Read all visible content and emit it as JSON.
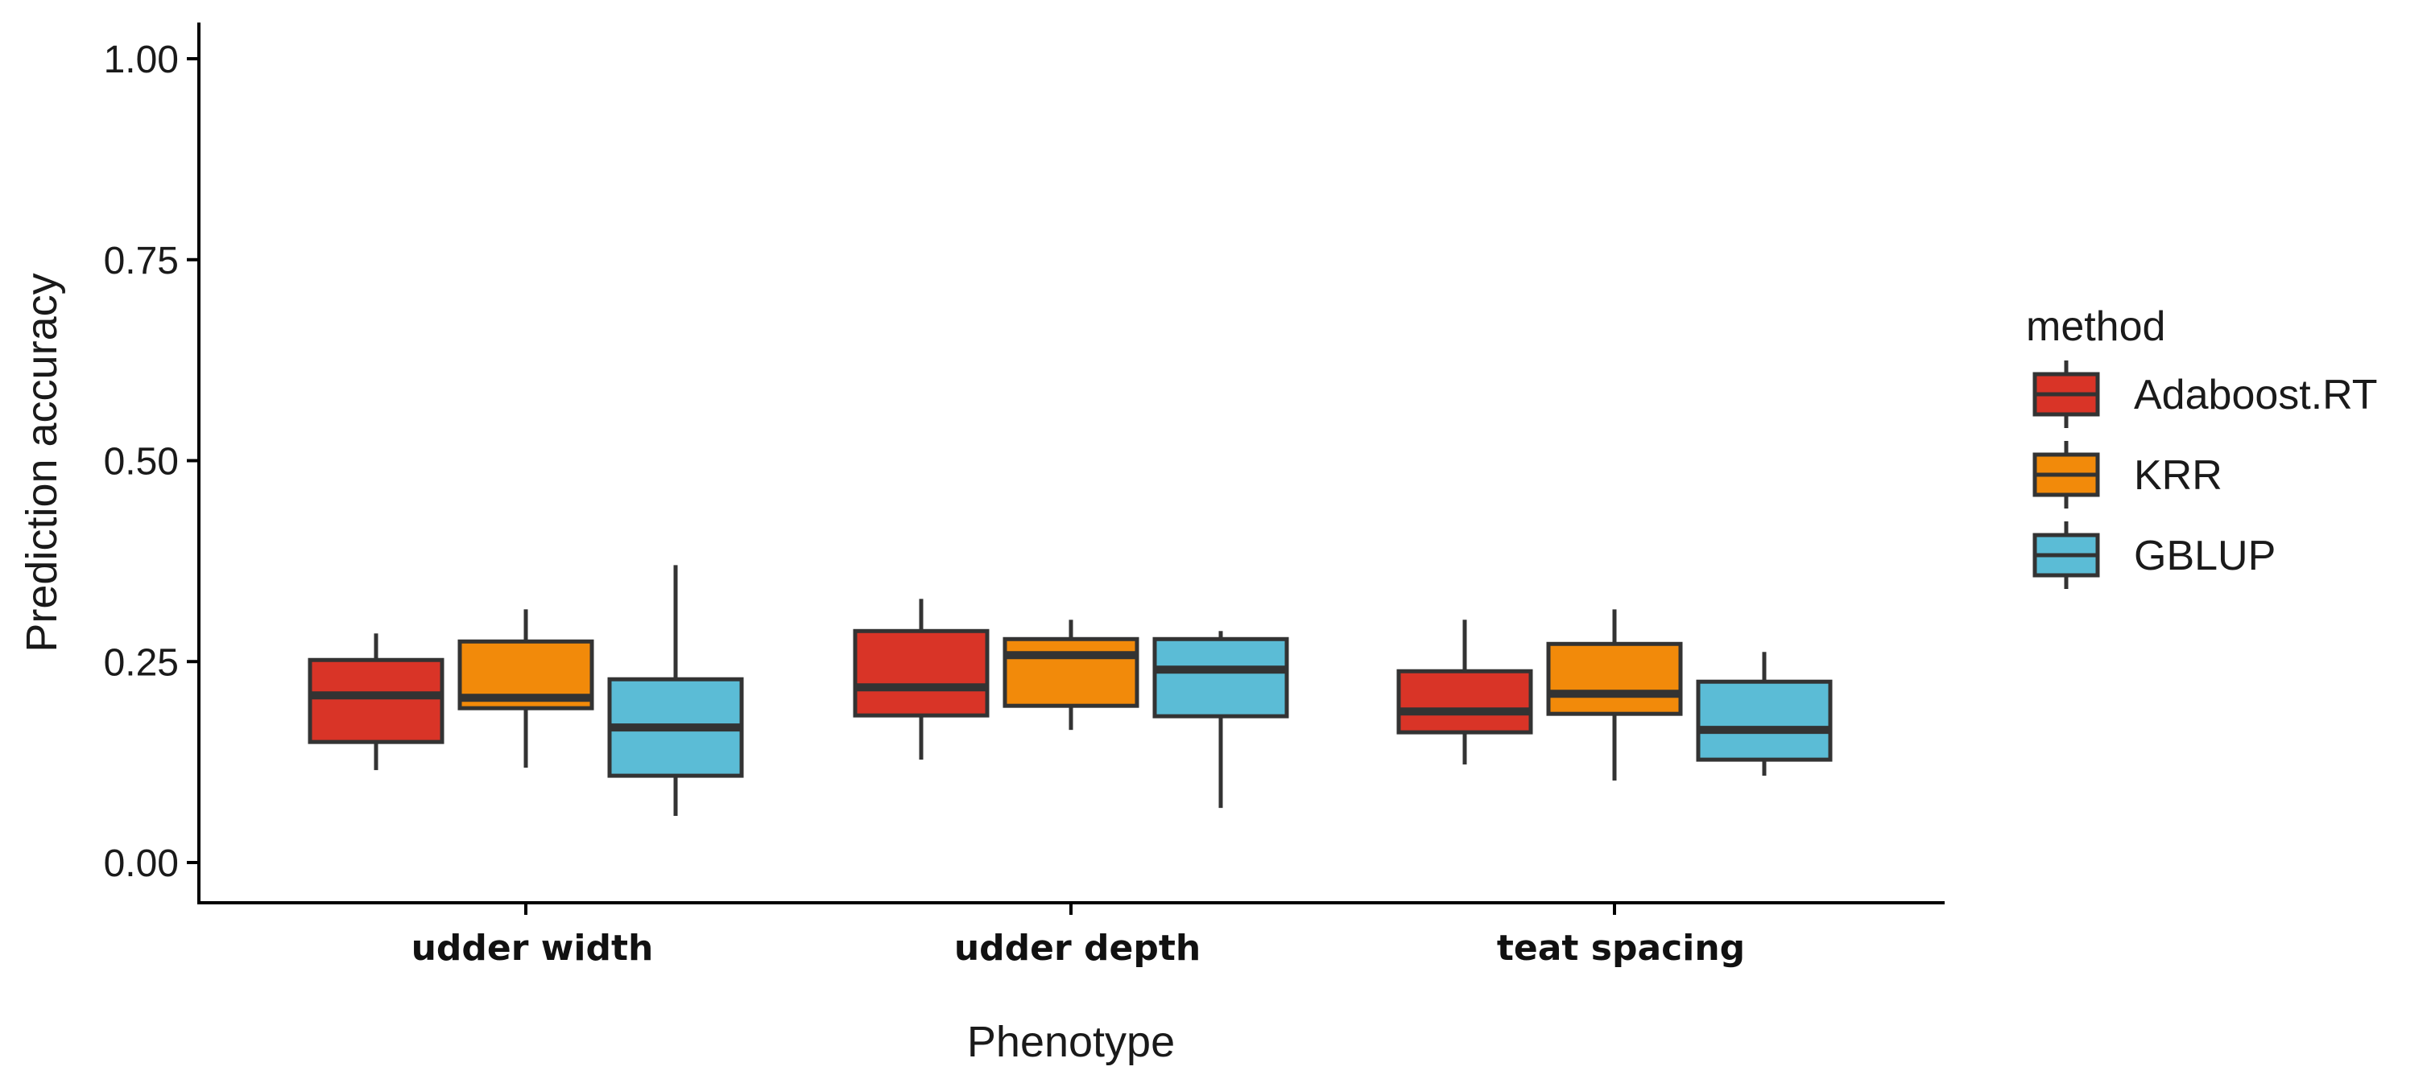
{
  "chart_data": {
    "type": "boxplot",
    "title": "",
    "xlabel": "Phenotype",
    "ylabel": "Prediction accuracy",
    "ylim": [
      -0.05,
      1.05
    ],
    "yticks": [
      0.0,
      0.25,
      0.5,
      0.75,
      1.0
    ],
    "ytick_labels": [
      "0.00",
      "0.25",
      "0.50",
      "0.75",
      "1.00"
    ],
    "categories": [
      "udder width",
      "udder depth",
      "teat spacing"
    ],
    "legend": {
      "title": "method",
      "position": "right"
    },
    "series": [
      {
        "name": "Adaboost.RT",
        "color": "#d93427",
        "boxes": [
          {
            "min": 0.115,
            "q1": 0.15,
            "median": 0.208,
            "q3": 0.252,
            "max": 0.285
          },
          {
            "min": 0.128,
            "q1": 0.183,
            "median": 0.218,
            "q3": 0.288,
            "max": 0.328
          },
          {
            "min": 0.122,
            "q1": 0.162,
            "median": 0.188,
            "q3": 0.238,
            "max": 0.302
          }
        ]
      },
      {
        "name": "KRR",
        "color": "#f28a0a",
        "boxes": [
          {
            "min": 0.118,
            "q1": 0.192,
            "median": 0.205,
            "q3": 0.275,
            "max": 0.315
          },
          {
            "min": 0.165,
            "q1": 0.195,
            "median": 0.258,
            "q3": 0.278,
            "max": 0.302
          },
          {
            "min": 0.102,
            "q1": 0.185,
            "median": 0.21,
            "q3": 0.272,
            "max": 0.315
          }
        ]
      },
      {
        "name": "GBLUP",
        "color": "#5bbcd6",
        "boxes": [
          {
            "min": 0.058,
            "q1": 0.108,
            "median": 0.168,
            "q3": 0.228,
            "max": 0.37
          },
          {
            "min": 0.068,
            "q1": 0.182,
            "median": 0.24,
            "q3": 0.278,
            "max": 0.288
          },
          {
            "min": 0.108,
            "q1": 0.128,
            "median": 0.165,
            "q3": 0.225,
            "max": 0.262
          }
        ]
      }
    ]
  }
}
